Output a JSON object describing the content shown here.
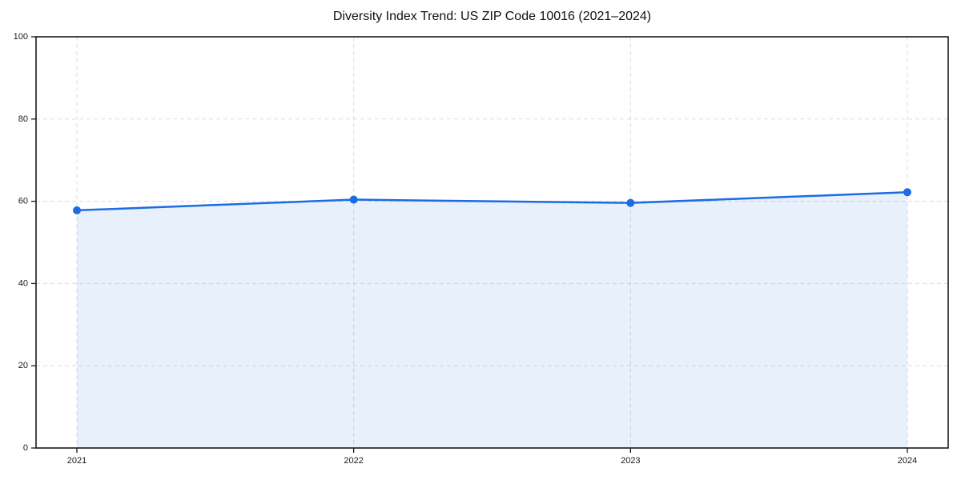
{
  "chart_data": {
    "type": "area",
    "title": "Diversity Index Trend: US ZIP Code 10016 (2021–2024)",
    "x": [
      "2021",
      "2022",
      "2023",
      "2024"
    ],
    "series": [
      {
        "name": "Diversity Index",
        "values": [
          57.8,
          60.4,
          59.6,
          62.2
        ]
      }
    ],
    "xlabel": "",
    "ylabel": "",
    "ylim": [
      0,
      100
    ],
    "yticks": [
      0,
      20,
      40,
      60,
      80,
      100
    ],
    "grid": true,
    "grid_style": "dashed",
    "legend": "none",
    "colors": {
      "line": "#1b6ce1",
      "marker": "#1b6ce1",
      "fill": "#1b6ce1",
      "fill_opacity": "0.10",
      "grid": "#dcdcdc",
      "axis": "#1a1a1a",
      "text": "#1a1a1a",
      "background": "#ffffff"
    }
  }
}
